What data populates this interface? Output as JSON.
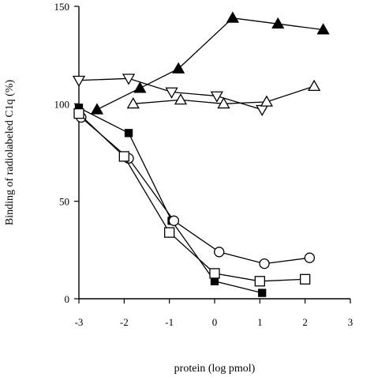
{
  "chart_data": {
    "type": "line",
    "title": "",
    "xlabel": "protein (log pmol)",
    "ylabel": "Binding of radiolabeled C1q (%)",
    "xlim": [
      -3,
      3
    ],
    "ylim": [
      0,
      150
    ],
    "xticks": [
      -3,
      -2,
      -1,
      0,
      1,
      2,
      3
    ],
    "yticks": [
      0,
      50,
      100,
      150
    ],
    "grid": false,
    "legend": "none",
    "series": [
      {
        "marker": "triangle-up-filled",
        "x": [
          -2.6,
          -1.65,
          -0.8,
          0.4,
          1.4,
          2.4
        ],
        "y": [
          97,
          108,
          118,
          144,
          141,
          138
        ]
      },
      {
        "marker": "triangle-down-open",
        "x": [
          -3,
          -1.9,
          -0.95,
          0.05,
          1.05
        ],
        "y": [
          112,
          113,
          106,
          104,
          97
        ]
      },
      {
        "marker": "triangle-up-open",
        "x": [
          -1.8,
          -0.75,
          0.2,
          1.15,
          2.2
        ],
        "y": [
          100,
          102,
          100,
          101,
          109
        ]
      },
      {
        "marker": "square-filled",
        "x": [
          -3,
          -1.9,
          -0.95,
          0,
          1.05
        ],
        "y": [
          98,
          85,
          40,
          9,
          3
        ]
      },
      {
        "marker": "circle-open",
        "x": [
          -2.95,
          -1.9,
          -0.9,
          0.1,
          1.1,
          2.1
        ],
        "y": [
          93,
          72,
          40,
          24,
          18,
          21
        ]
      },
      {
        "marker": "square-open",
        "x": [
          -3,
          -2,
          -1,
          0,
          1,
          2
        ],
        "y": [
          95,
          73,
          34,
          13,
          9,
          10
        ]
      }
    ]
  }
}
